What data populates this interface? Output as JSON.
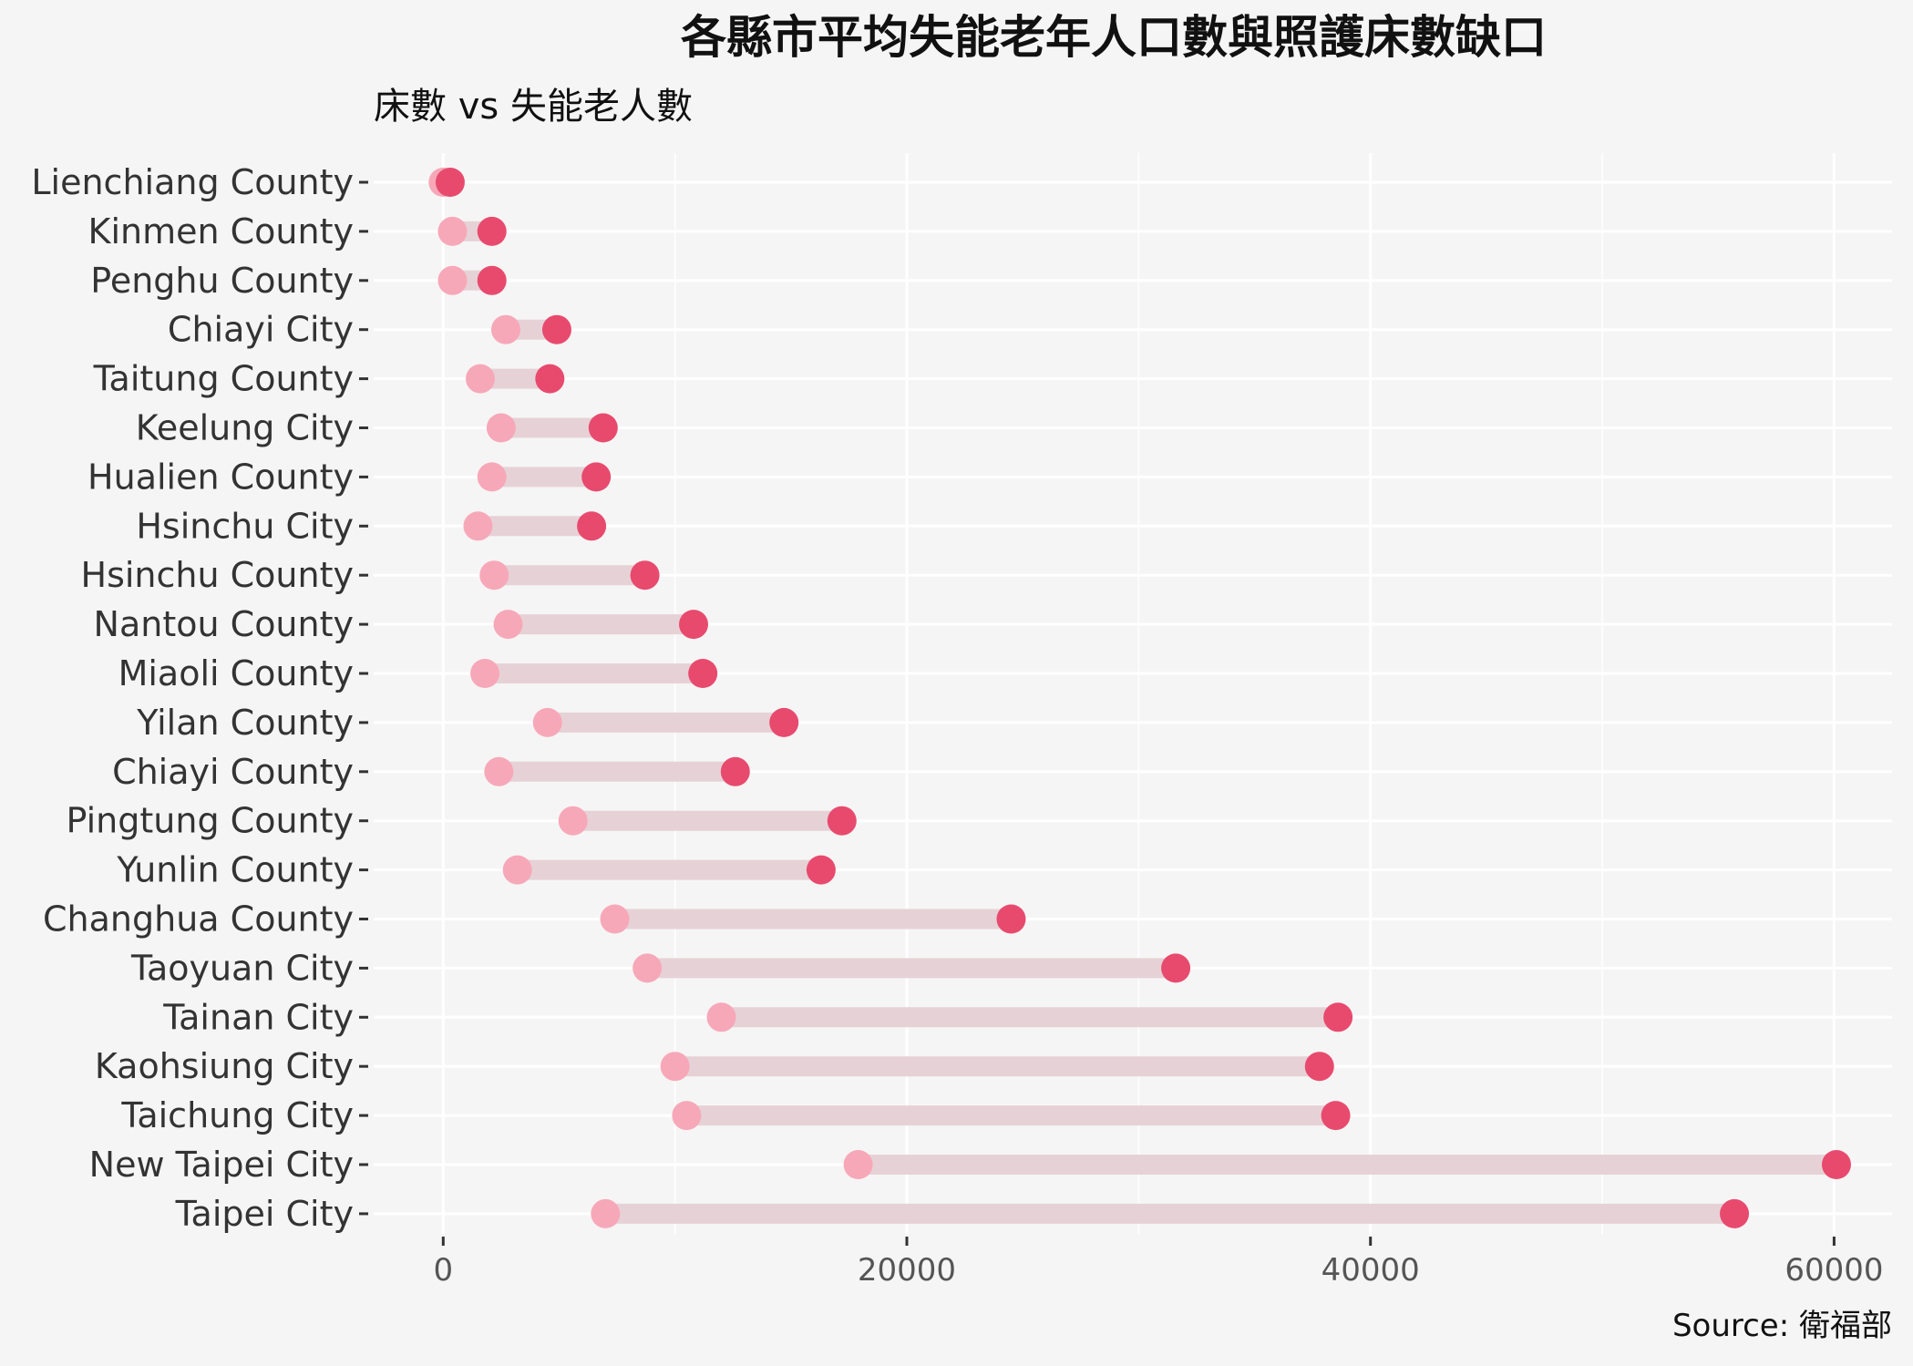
{
  "colors": {
    "background": "#f5f5f5",
    "grid": "#ffffff",
    "segment": "#e6d2d6",
    "beds_point": "#f7a8b8",
    "elderly_point": "#e84a6e",
    "text": "#333333"
  },
  "chart_data": {
    "type": "dumbbell",
    "title": "各縣市平均失能老年人口數與照護床數缺口",
    "subtitle": "床數 vs 失能老人數",
    "caption": "Source: 衛福部",
    "xlim": [
      -3000,
      62500
    ],
    "xticks": [
      0,
      20000,
      40000,
      60000
    ],
    "xtick_labels": [
      "0",
      "20000",
      "40000",
      "60000"
    ],
    "grid": true,
    "legend": "none",
    "categories": [
      "Lienchiang County",
      "Kinmen County",
      "Penghu County",
      "Chiayi City",
      "Taitung County",
      "Keelung City",
      "Hualien County",
      "Hsinchu City",
      "Hsinchu County",
      "Nantou County",
      "Miaoli County",
      "Yilan County ",
      "Chiayi County ",
      "Pingtung County",
      "Yunlin County",
      "Changhua County ",
      "Taoyuan City",
      "Tainan City ",
      "Kaohsiung City",
      "Taichung City",
      "New Taipei City ",
      "Taipei City "
    ],
    "series": [
      {
        "values": [
          0,
          400,
          400,
          2700,
          1600,
          2500,
          2100,
          1500,
          2200,
          2800,
          1800,
          4500,
          2400,
          5600,
          3200,
          7400,
          8800,
          12000,
          10000,
          10500,
          17900,
          7000
        ]
      },
      {
        "values": [
          300,
          2100,
          2100,
          4900,
          4600,
          6900,
          6600,
          6400,
          8700,
          10800,
          11200,
          14700,
          12600,
          17200,
          16300,
          24500,
          31600,
          38600,
          37800,
          38500,
          60100,
          55700
        ]
      }
    ]
  }
}
